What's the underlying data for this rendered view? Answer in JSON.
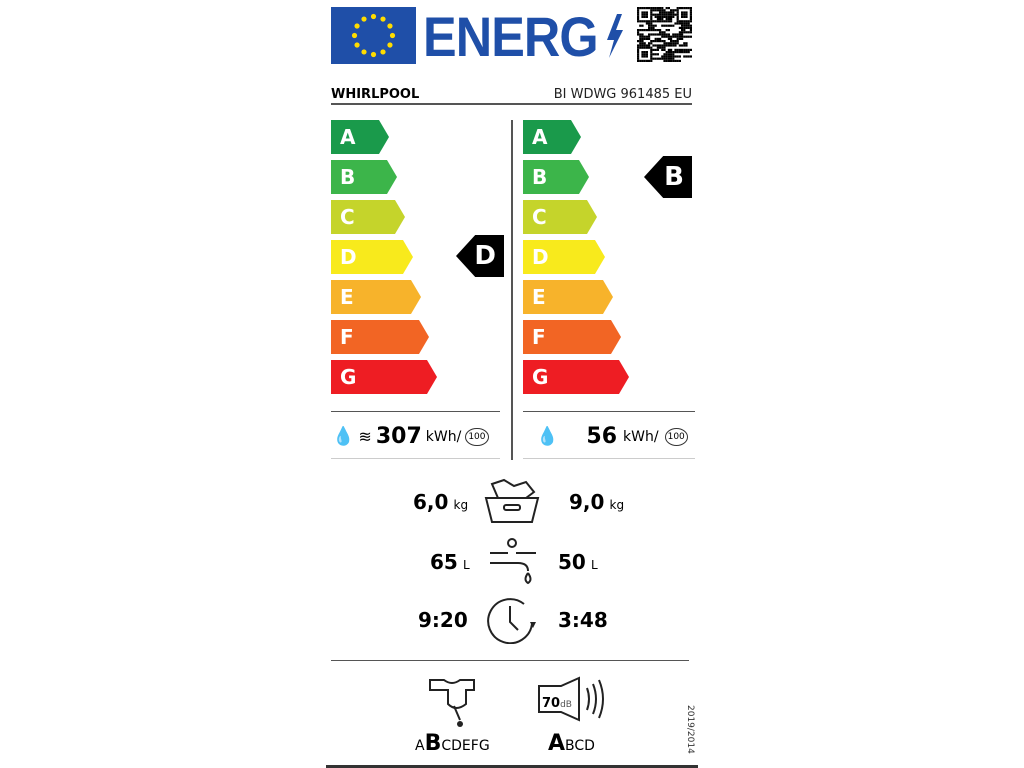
{
  "header": {
    "logo_text": "ENERG",
    "brand": "WHIRLPOOL",
    "model": "BI WDWG 961485 EU"
  },
  "scales": {
    "classes": [
      "A",
      "B",
      "C",
      "D",
      "E",
      "F",
      "G"
    ],
    "colors": [
      "#1a9a4b",
      "#3cb54a",
      "#c5d42b",
      "#f8ea1c",
      "#f7b32b",
      "#f26524",
      "#ee1d23"
    ]
  },
  "left": {
    "rating": "D",
    "energy": "307",
    "unit": "kWh/",
    "cycles": "100"
  },
  "right": {
    "rating": "B",
    "energy": "56",
    "unit": "kWh/",
    "cycles": "100"
  },
  "capacity": {
    "left": "6,0",
    "right": "9,0",
    "unit": "kg"
  },
  "water": {
    "left": "65",
    "right": "50",
    "unit": "L"
  },
  "duration": {
    "left": "9:20",
    "right": "3:48"
  },
  "spin": {
    "scale_pre": "A",
    "selected": "B",
    "scale_post": "CDEFG"
  },
  "noise": {
    "value": "70",
    "unit": "dB",
    "selected": "A",
    "scale_post": "BCD"
  },
  "regulation": "2019/2014"
}
